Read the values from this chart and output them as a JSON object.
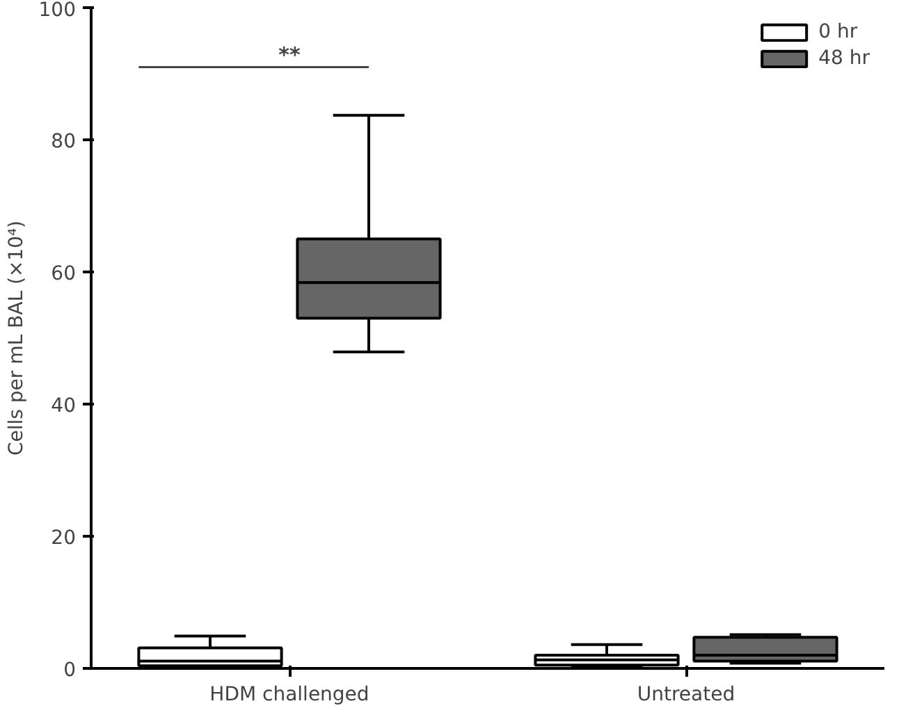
{
  "chart_data": {
    "type": "box",
    "ylabel": "Cells per mL BAL (×10⁴)",
    "categories": [
      "HDM challenged",
      "Untreated"
    ],
    "series": [
      {
        "name": "0 hr",
        "color": "#ffffff",
        "boxes": [
          {
            "low": 0,
            "q1": 0.4,
            "median": 1.1,
            "q3": 3.1,
            "high": 4.9
          },
          {
            "low": 0.2,
            "q1": 0.5,
            "median": 1.3,
            "q3": 2.0,
            "high": 3.6
          }
        ]
      },
      {
        "name": "48 hr",
        "color": "#666666",
        "boxes": [
          {
            "low": 47.9,
            "q1": 53,
            "median": 58.4,
            "q3": 65,
            "high": 83.7
          },
          {
            "low": 0.8,
            "q1": 1.1,
            "median": 2.0,
            "q3": 4.7,
            "high": 5.1
          }
        ]
      }
    ],
    "ylim": [
      0,
      100
    ],
    "yticks": [
      0,
      20,
      40,
      60,
      80,
      100
    ],
    "grid": false,
    "legend": "top right",
    "annotations": [
      "**"
    ]
  }
}
